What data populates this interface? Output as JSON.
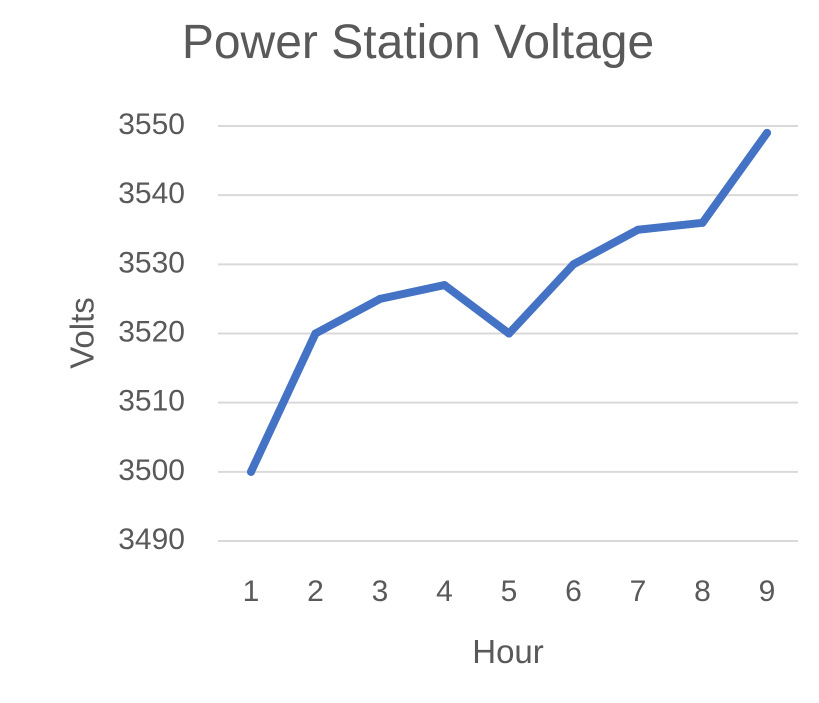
{
  "chart_data": {
    "type": "line",
    "title": "Power Station Voltage",
    "xlabel": "Hour",
    "ylabel": "Volts",
    "x": [
      1,
      2,
      3,
      4,
      5,
      6,
      7,
      8,
      9
    ],
    "series": [
      {
        "values": [
          3500,
          3520,
          3525,
          3527,
          3520,
          3530,
          3535,
          3536,
          3549
        ],
        "color": "#4472c4"
      }
    ],
    "ylim": [
      3490,
      3550
    ],
    "yticks": [
      3490,
      3500,
      3510,
      3520,
      3530,
      3540,
      3550
    ],
    "grid": true,
    "legend": "none"
  }
}
